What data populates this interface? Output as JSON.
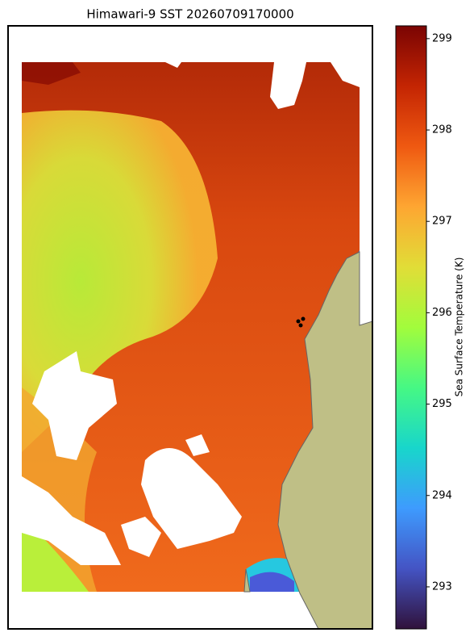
{
  "title": "Himawari-9 SST 20260709170000",
  "colorbar": {
    "label": "Sea Surface Temperature (K)",
    "lim": [
      292.54,
      299.14
    ],
    "ticks": [
      293,
      294,
      295,
      296,
      297,
      298,
      299
    ]
  }
}
